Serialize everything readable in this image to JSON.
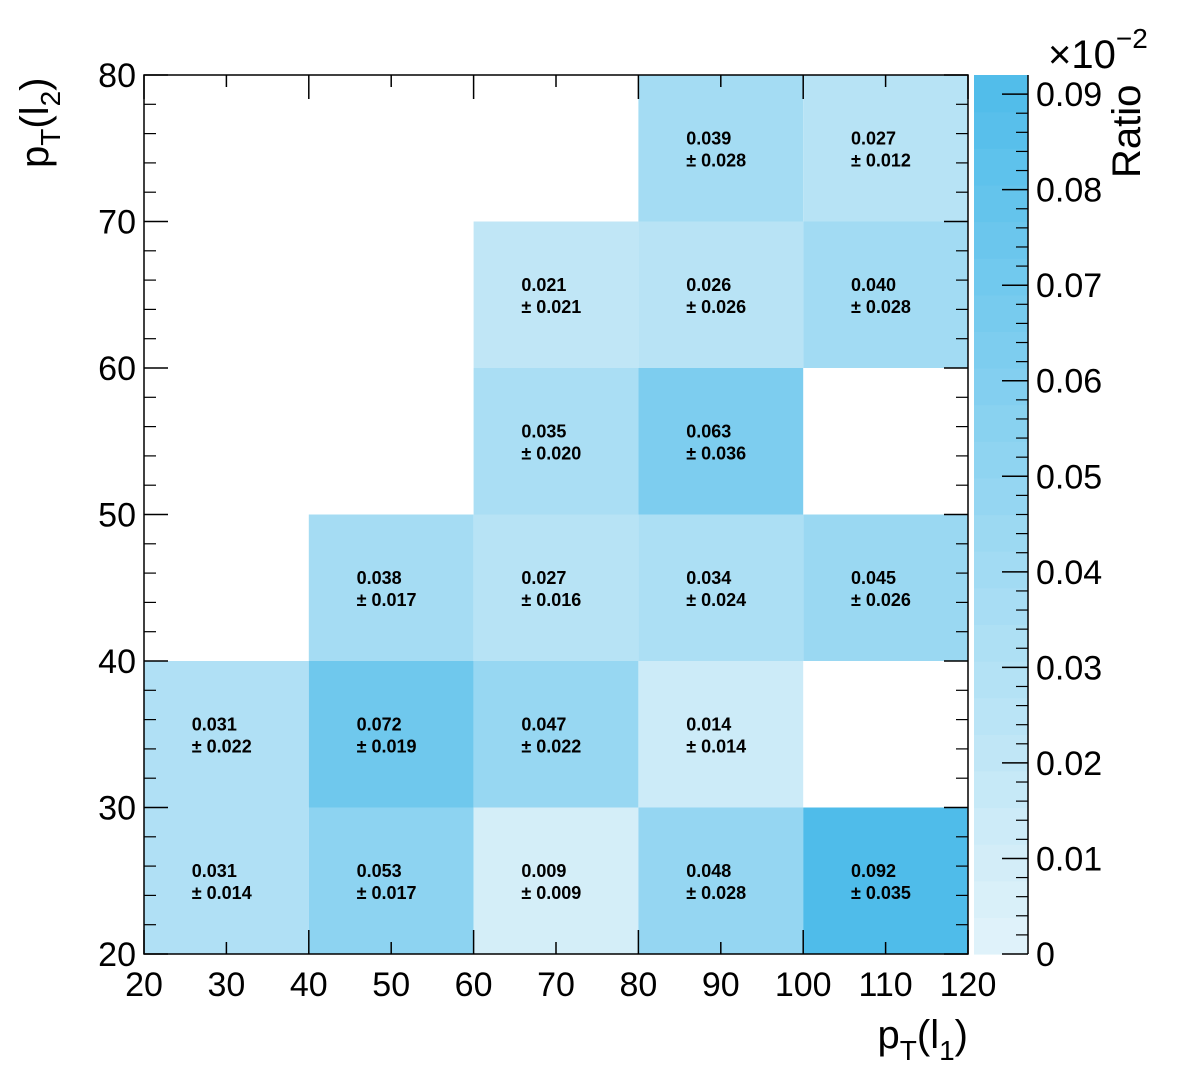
{
  "chart_data": {
    "type": "heatmap",
    "x_edges": [
      20,
      40,
      60,
      80,
      100,
      120
    ],
    "y_edges": [
      20,
      30,
      40,
      50,
      60,
      70,
      80
    ],
    "x_ticks": [
      20,
      30,
      40,
      50,
      60,
      70,
      80,
      90,
      100,
      110,
      120
    ],
    "y_ticks": [
      20,
      30,
      40,
      50,
      60,
      70,
      80
    ],
    "xlim": [
      20,
      120
    ],
    "ylim": [
      20,
      80
    ],
    "xlabel": {
      "main": "p",
      "sub": "T",
      "paren_open": "(l",
      "sub2": "1",
      "paren_close": ")"
    },
    "ylabel": {
      "main": "p",
      "sub": "T",
      "paren_open": "(l",
      "sub2": "2",
      "paren_close": ")"
    },
    "colorbar": {
      "label": "Ratio",
      "range": [
        0,
        0.092
      ],
      "ticks": [
        "0",
        "0.01",
        "0.02",
        "0.03",
        "0.04",
        "0.05",
        "0.06",
        "0.07",
        "0.08",
        "0.09"
      ],
      "tick_values": [
        0,
        0.01,
        0.02,
        0.03,
        0.04,
        0.05,
        0.06,
        0.07,
        0.08,
        0.09
      ],
      "exponent_base": "×10",
      "exponent_power": "−2",
      "color_low": "#e2f3fa",
      "color_high": "#4fbcea"
    },
    "cells": [
      {
        "x": [
          20,
          40
        ],
        "y": [
          20,
          30
        ],
        "value": 0.031,
        "error": 0.014,
        "label": "0.031",
        "err_label": "± 0.014"
      },
      {
        "x": [
          40,
          60
        ],
        "y": [
          20,
          30
        ],
        "value": 0.053,
        "error": 0.017,
        "label": "0.053",
        "err_label": "± 0.017"
      },
      {
        "x": [
          60,
          80
        ],
        "y": [
          20,
          30
        ],
        "value": 0.009,
        "error": 0.009,
        "label": "0.009",
        "err_label": "± 0.009"
      },
      {
        "x": [
          80,
          100
        ],
        "y": [
          20,
          30
        ],
        "value": 0.048,
        "error": 0.028,
        "label": "0.048",
        "err_label": "± 0.028"
      },
      {
        "x": [
          100,
          120
        ],
        "y": [
          20,
          30
        ],
        "value": 0.092,
        "error": 0.035,
        "label": "0.092",
        "err_label": "± 0.035"
      },
      {
        "x": [
          20,
          40
        ],
        "y": [
          30,
          40
        ],
        "value": 0.031,
        "error": 0.022,
        "label": "0.031",
        "err_label": "± 0.022"
      },
      {
        "x": [
          40,
          60
        ],
        "y": [
          30,
          40
        ],
        "value": 0.072,
        "error": 0.019,
        "label": "0.072",
        "err_label": "± 0.019"
      },
      {
        "x": [
          60,
          80
        ],
        "y": [
          30,
          40
        ],
        "value": 0.047,
        "error": 0.022,
        "label": "0.047",
        "err_label": "± 0.022"
      },
      {
        "x": [
          80,
          100
        ],
        "y": [
          30,
          40
        ],
        "value": 0.014,
        "error": 0.014,
        "label": "0.014",
        "err_label": "± 0.014"
      },
      {
        "x": [
          40,
          60
        ],
        "y": [
          40,
          50
        ],
        "value": 0.038,
        "error": 0.017,
        "label": "0.038",
        "err_label": "± 0.017"
      },
      {
        "x": [
          60,
          80
        ],
        "y": [
          40,
          50
        ],
        "value": 0.027,
        "error": 0.016,
        "label": "0.027",
        "err_label": "± 0.016"
      },
      {
        "x": [
          80,
          100
        ],
        "y": [
          40,
          50
        ],
        "value": 0.034,
        "error": 0.024,
        "label": "0.034",
        "err_label": "± 0.024"
      },
      {
        "x": [
          100,
          120
        ],
        "y": [
          40,
          50
        ],
        "value": 0.045,
        "error": 0.026,
        "label": "0.045",
        "err_label": "± 0.026"
      },
      {
        "x": [
          60,
          80
        ],
        "y": [
          50,
          60
        ],
        "value": 0.035,
        "error": 0.02,
        "label": "0.035",
        "err_label": "± 0.020"
      },
      {
        "x": [
          80,
          100
        ],
        "y": [
          50,
          60
        ],
        "value": 0.063,
        "error": 0.036,
        "label": "0.063",
        "err_label": "± 0.036"
      },
      {
        "x": [
          60,
          80
        ],
        "y": [
          60,
          70
        ],
        "value": 0.021,
        "error": 0.021,
        "label": "0.021",
        "err_label": "± 0.021"
      },
      {
        "x": [
          80,
          100
        ],
        "y": [
          60,
          70
        ],
        "value": 0.026,
        "error": 0.026,
        "label": "0.026",
        "err_label": "± 0.026"
      },
      {
        "x": [
          100,
          120
        ],
        "y": [
          60,
          70
        ],
        "value": 0.04,
        "error": 0.028,
        "label": "0.040",
        "err_label": "± 0.028"
      },
      {
        "x": [
          80,
          100
        ],
        "y": [
          70,
          80
        ],
        "value": 0.039,
        "error": 0.028,
        "label": "0.039",
        "err_label": "± 0.028"
      },
      {
        "x": [
          100,
          120
        ],
        "y": [
          70,
          80
        ],
        "value": 0.027,
        "error": 0.012,
        "label": "0.027",
        "err_label": "± 0.012"
      }
    ]
  }
}
